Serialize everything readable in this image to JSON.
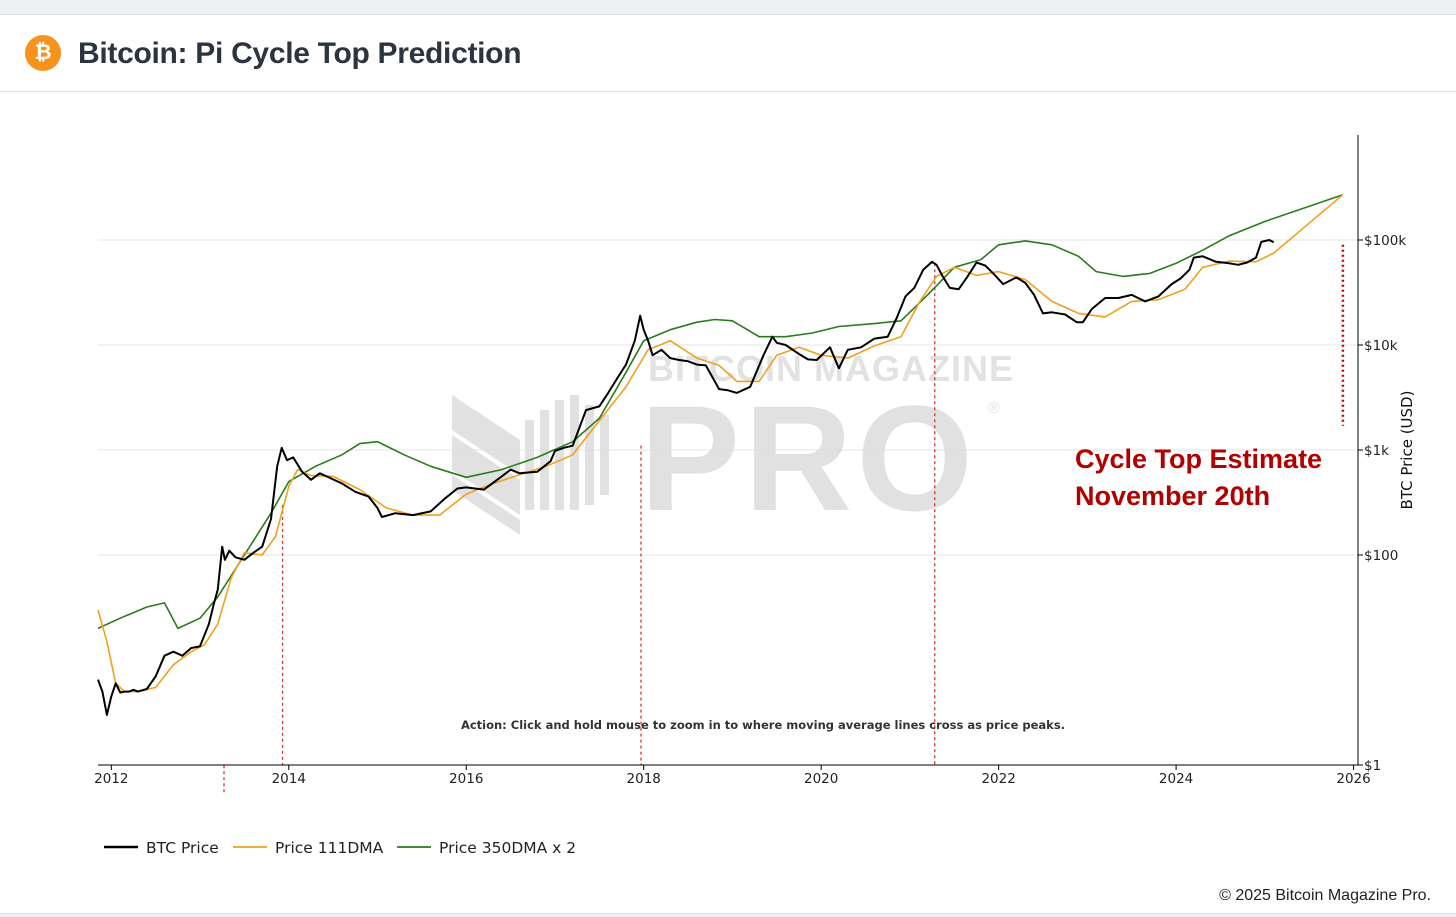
{
  "header": {
    "logo_glyph": "₿",
    "title": "Bitcoin: Pi Cycle Top Prediction"
  },
  "footer": {
    "copyright": "© 2025 Bitcoin Magazine Pro."
  },
  "watermark": {
    "line1": "BITCOIN MAGAZINE",
    "line2": "PRO",
    "mark": "®"
  },
  "annotation": {
    "line1": "Cycle Top Estimate",
    "line2": "November 20th",
    "color": "#b00000"
  },
  "action_note": "Action: Click and hold mouse to zoom in to where moving average lines cross as price peaks.",
  "colors": {
    "price": "#000000",
    "dma111": "#f0a020",
    "dma350x2": "#2a7a1e",
    "cross_marker": "#e03030",
    "grid": "#e4e4e4"
  },
  "chart_data": {
    "type": "line",
    "title": "Bitcoin: Pi Cycle Top Prediction",
    "xlabel": "",
    "ylabel": "BTC Price (USD)",
    "yscale": "log",
    "ylim": [
      1,
      1000000
    ],
    "xlim": [
      2011.85,
      2026.05
    ],
    "x_ticks": [
      2012,
      2014,
      2016,
      2018,
      2020,
      2022,
      2024,
      2026
    ],
    "x_tick_labels": [
      "2012",
      "2014",
      "2016",
      "2018",
      "2020",
      "2022",
      "2024",
      "2026"
    ],
    "y_ticks": [
      1,
      100,
      1000,
      10000,
      100000
    ],
    "y_tick_labels": [
      "$1",
      "$100",
      "$1k",
      "$10k",
      "$100k"
    ],
    "legend": [
      "BTC Price",
      "Price 111DMA",
      "Price 350DMA x 2"
    ],
    "legend_position": "bottom-left",
    "cycle_top_crosses": [
      2013.27,
      2013.93,
      2017.97,
      2021.28
    ],
    "projected_top": {
      "x": 2025.88,
      "y_range": [
        1700,
        90000
      ]
    },
    "series": [
      {
        "name": "BTC Price",
        "x": [
          2011.85,
          2011.9,
          2011.95,
          2012.0,
          2012.05,
          2012.1,
          2012.15,
          2012.2,
          2012.25,
          2012.3,
          2012.4,
          2012.5,
          2012.6,
          2012.7,
          2012.8,
          2012.9,
          2013.0,
          2013.1,
          2013.15,
          2013.2,
          2013.25,
          2013.28,
          2013.33,
          2013.4,
          2013.5,
          2013.6,
          2013.7,
          2013.8,
          2013.87,
          2013.92,
          2013.98,
          2014.05,
          2014.15,
          2014.25,
          2014.35,
          2014.45,
          2014.6,
          2014.75,
          2014.9,
          2015.0,
          2015.05,
          2015.2,
          2015.4,
          2015.6,
          2015.75,
          2015.9,
          2016.0,
          2016.2,
          2016.4,
          2016.5,
          2016.6,
          2016.8,
          2016.95,
          2017.0,
          2017.1,
          2017.2,
          2017.35,
          2017.5,
          2017.6,
          2017.7,
          2017.8,
          2017.9,
          2017.96,
          2018.0,
          2018.05,
          2018.1,
          2018.2,
          2018.3,
          2018.4,
          2018.5,
          2018.6,
          2018.7,
          2018.85,
          2018.95,
          2019.05,
          2019.2,
          2019.35,
          2019.45,
          2019.5,
          2019.6,
          2019.75,
          2019.85,
          2019.95,
          2020.1,
          2020.2,
          2020.3,
          2020.45,
          2020.6,
          2020.75,
          2020.85,
          2020.95,
          2021.05,
          2021.15,
          2021.25,
          2021.3,
          2021.37,
          2021.45,
          2021.55,
          2021.65,
          2021.75,
          2021.85,
          2021.95,
          2022.05,
          2022.2,
          2022.3,
          2022.4,
          2022.5,
          2022.6,
          2022.75,
          2022.88,
          2022.95,
          2023.05,
          2023.2,
          2023.35,
          2023.5,
          2023.65,
          2023.8,
          2023.95,
          2024.05,
          2024.15,
          2024.2,
          2024.3,
          2024.45,
          2024.6,
          2024.7,
          2024.8,
          2024.9,
          2024.96,
          2025.05,
          2025.1
        ],
        "values": [
          6.5,
          5.0,
          3.0,
          4.5,
          6.0,
          4.9,
          5.0,
          5.0,
          5.2,
          5.0,
          5.3,
          7.0,
          11,
          12,
          11,
          13,
          13.5,
          22,
          33,
          47,
          120,
          90,
          110,
          95,
          90,
          105,
          120,
          220,
          700,
          1050,
          800,
          850,
          620,
          520,
          600,
          550,
          480,
          400,
          360,
          280,
          230,
          250,
          240,
          260,
          340,
          430,
          440,
          420,
          560,
          650,
          600,
          620,
          780,
          980,
          1050,
          1100,
          2400,
          2600,
          3500,
          4800,
          6500,
          11000,
          19000,
          14000,
          11000,
          8000,
          9000,
          7500,
          7200,
          7000,
          6500,
          6400,
          3800,
          3700,
          3500,
          4000,
          8000,
          12000,
          10500,
          10000,
          8200,
          7300,
          7200,
          9500,
          6000,
          9000,
          9500,
          11500,
          12000,
          18000,
          29000,
          35000,
          52000,
          62000,
          58000,
          45000,
          35000,
          34000,
          45000,
          61000,
          57000,
          47000,
          38000,
          44000,
          39000,
          30000,
          20000,
          20500,
          19500,
          16500,
          16500,
          22000,
          28000,
          28000,
          30000,
          26000,
          29000,
          38000,
          43000,
          52000,
          68000,
          70000,
          62000,
          60000,
          58000,
          61000,
          68000,
          96000,
          100000,
          95000
        ]
      },
      {
        "name": "Price 111DMA",
        "x": [
          2011.85,
          2011.95,
          2012.05,
          2012.15,
          2012.3,
          2012.5,
          2012.7,
          2012.9,
          2013.05,
          2013.2,
          2013.35,
          2013.5,
          2013.7,
          2013.85,
          2014.0,
          2014.1,
          2014.25,
          2014.5,
          2014.8,
          2015.1,
          2015.4,
          2015.7,
          2016.0,
          2016.3,
          2016.6,
          2016.9,
          2017.2,
          2017.5,
          2017.8,
          2018.05,
          2018.3,
          2018.6,
          2018.85,
          2019.05,
          2019.3,
          2019.5,
          2019.75,
          2020.0,
          2020.3,
          2020.6,
          2020.9,
          2021.1,
          2021.3,
          2021.5,
          2021.75,
          2022.0,
          2022.3,
          2022.6,
          2022.9,
          2023.2,
          2023.5,
          2023.8,
          2024.1,
          2024.3,
          2024.6,
          2024.9,
          2025.1,
          2025.88
        ],
        "values": [
          30,
          15,
          6.0,
          5.0,
          5.0,
          5.5,
          9.0,
          12,
          14,
          22,
          60,
          105,
          100,
          150,
          450,
          650,
          570,
          560,
          420,
          280,
          240,
          240,
          380,
          480,
          580,
          700,
          900,
          1900,
          4000,
          9000,
          11000,
          7500,
          6400,
          4500,
          4500,
          8000,
          9500,
          8000,
          7500,
          9800,
          12000,
          25000,
          45000,
          55000,
          46000,
          50000,
          42000,
          26000,
          20000,
          18500,
          26000,
          27000,
          34000,
          55000,
          63000,
          62000,
          75000,
          270000
        ]
      },
      {
        "name": "Price 350DMA x 2",
        "x": [
          2011.85,
          2012.1,
          2012.4,
          2012.6,
          2012.75,
          2013.0,
          2013.2,
          2013.5,
          2013.8,
          2014.0,
          2014.3,
          2014.6,
          2014.8,
          2015.0,
          2015.3,
          2015.6,
          2016.0,
          2016.4,
          2016.8,
          2017.2,
          2017.5,
          2017.8,
          2018.0,
          2018.3,
          2018.6,
          2018.8,
          2019.0,
          2019.3,
          2019.6,
          2019.9,
          2020.2,
          2020.6,
          2020.9,
          2021.2,
          2021.5,
          2021.8,
          2022.0,
          2022.3,
          2022.6,
          2022.9,
          2023.1,
          2023.4,
          2023.7,
          2024.0,
          2024.3,
          2024.6,
          2025.0,
          2025.88
        ],
        "values": [
          20,
          25,
          32,
          35,
          20,
          25,
          40,
          100,
          250,
          500,
          700,
          900,
          1150,
          1200,
          900,
          700,
          550,
          650,
          850,
          1200,
          2000,
          5500,
          11000,
          14000,
          16500,
          17500,
          17000,
          12000,
          12000,
          13000,
          15000,
          16000,
          17000,
          30000,
          55000,
          65000,
          90000,
          98000,
          90000,
          70000,
          50000,
          45000,
          48000,
          60000,
          80000,
          110000,
          150000,
          270000
        ]
      }
    ]
  }
}
